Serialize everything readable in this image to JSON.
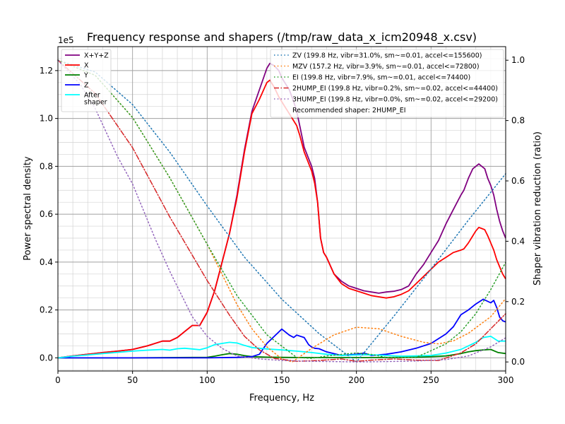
{
  "chart_data": {
    "type": "line",
    "title": "Frequency response and shapers (/tmp/raw_data_x_icm20948_x.csv)",
    "xlabel": "Frequency, Hz",
    "ylabel": "Power spectral density",
    "y2label": "Shaper vibration reduction (ratio)",
    "y_offset_label": "1e5",
    "xlim": [
      0,
      300
    ],
    "ylim": [
      -5500,
      130000
    ],
    "y2lim": [
      -0.03,
      1.045
    ],
    "xticks": [
      0,
      50,
      100,
      150,
      200,
      250,
      300
    ],
    "xtick_labels": [
      "0",
      "50",
      "100",
      "150",
      "200",
      "250",
      "300"
    ],
    "yticks": [
      0,
      20000,
      40000,
      60000,
      80000,
      100000,
      120000
    ],
    "ytick_labels": [
      "0.0",
      "0.2",
      "0.4",
      "0.6",
      "0.8",
      "1.0",
      "1.2"
    ],
    "y2ticks": [
      0,
      0.2,
      0.4,
      0.6,
      0.8,
      1.0
    ],
    "y2tick_labels": [
      "0.0",
      "0.2",
      "0.4",
      "0.6",
      "0.8",
      "1.0"
    ],
    "grid": true,
    "legend_left": {
      "placement": "upper-left",
      "entries": [
        {
          "label": "X+Y+Z",
          "color": "#800080",
          "dash": "solid"
        },
        {
          "label": "X",
          "color": "#ff0000",
          "dash": "solid"
        },
        {
          "label": "Y",
          "color": "#008000",
          "dash": "solid"
        },
        {
          "label": "Z",
          "color": "#0000ff",
          "dash": "solid"
        },
        {
          "label": "After\nshaper",
          "color": "#00ffff",
          "dash": "solid"
        }
      ]
    },
    "legend_right": {
      "placement": "upper-right",
      "entries": [
        {
          "label": "ZV (199.8 Hz, vibr=31.0%, sm~=0.01, accel<=155600)",
          "color": "#1f77b4",
          "dash": "dotted"
        },
        {
          "label": "MZV (157.2 Hz, vibr=3.9%, sm~=0.01, accel<=72800)",
          "color": "#ff7f0e",
          "dash": "dotted"
        },
        {
          "label": "EI (199.8 Hz, vibr=7.9%, sm~=0.01, accel<=74400)",
          "color": "#2ca02c",
          "dash": "dotted"
        },
        {
          "label": "2HUMP_EI (199.8 Hz, vibr=0.2%, sm~=0.02, accel<=44400)",
          "color": "#d62728",
          "dash": "dashdot"
        },
        {
          "label": "3HUMP_EI (199.8 Hz, vibr=0.0%, sm~=0.02, accel<=29200)",
          "color": "#9467bd",
          "dash": "dotted"
        },
        {
          "label": "Recommended shaper: 2HUMP_EI",
          "color": null,
          "dash": "none"
        }
      ]
    },
    "psd_series": [
      {
        "name": "X+Y+Z",
        "color": "#800080",
        "width": 1.8,
        "x": [
          0,
          10,
          20,
          30,
          40,
          50,
          60,
          70,
          75,
          80,
          85,
          90,
          95,
          100,
          105,
          110,
          115,
          120,
          125,
          130,
          135,
          140,
          142,
          145,
          148,
          150,
          152,
          155,
          158,
          160,
          162,
          165,
          170,
          172,
          174,
          176,
          178,
          180,
          185,
          190,
          195,
          200,
          205,
          210,
          215,
          220,
          225,
          230,
          235,
          240,
          245,
          250,
          255,
          260,
          265,
          270,
          272,
          275,
          278,
          280,
          282,
          284,
          286,
          288,
          290,
          292,
          294,
          296,
          298,
          300
        ],
        "y": [
          0,
          800,
          1500,
          2200,
          2800,
          3500,
          5000,
          7000,
          7000,
          8500,
          11000,
          13500,
          13500,
          19000,
          28000,
          40000,
          52000,
          68000,
          87000,
          103000,
          112000,
          121000,
          123000,
          122000,
          120000,
          117000,
          115000,
          112000,
          107000,
          103000,
          97000,
          88000,
          80000,
          75000,
          65000,
          50000,
          44000,
          42000,
          35000,
          32000,
          30000,
          29000,
          28000,
          27500,
          27000,
          27500,
          27800,
          28500,
          30000,
          35000,
          39000,
          44000,
          49000,
          56000,
          62000,
          68000,
          70000,
          75000,
          79000,
          80000,
          81000,
          80000,
          79000,
          75000,
          72000,
          68000,
          62000,
          57000,
          53000,
          50000
        ]
      },
      {
        "name": "X",
        "color": "#ff0000",
        "width": 1.8,
        "x": [
          0,
          10,
          20,
          30,
          40,
          50,
          60,
          70,
          75,
          80,
          85,
          90,
          95,
          100,
          105,
          110,
          115,
          120,
          125,
          130,
          135,
          140,
          142,
          145,
          148,
          150,
          152,
          155,
          158,
          160,
          162,
          165,
          170,
          172,
          174,
          176,
          178,
          180,
          185,
          190,
          195,
          200,
          205,
          210,
          215,
          220,
          225,
          230,
          235,
          240,
          245,
          250,
          255,
          260,
          265,
          270,
          272,
          275,
          278,
          280,
          282,
          284,
          286,
          288,
          290,
          292,
          294,
          296,
          298,
          300
        ],
        "y": [
          0,
          800,
          1500,
          2200,
          2800,
          3500,
          5000,
          7000,
          7000,
          8500,
          11000,
          13500,
          13500,
          19000,
          28000,
          40000,
          52000,
          67000,
          86000,
          102000,
          108000,
          115000,
          116000,
          113000,
          109000,
          107000,
          105000,
          102000,
          99000,
          97000,
          93000,
          86000,
          78000,
          73000,
          65000,
          50000,
          44000,
          42000,
          35000,
          31000,
          29000,
          28000,
          27000,
          26000,
          25500,
          25000,
          25500,
          26500,
          28000,
          31000,
          34000,
          37000,
          40000,
          42000,
          44000,
          45000,
          45500,
          48000,
          51000,
          53000,
          54500,
          54000,
          53500,
          51000,
          48000,
          45000,
          41000,
          38000,
          35000,
          33000
        ]
      },
      {
        "name": "Y",
        "color": "#008000",
        "width": 1.8,
        "x": [
          0,
          50,
          100,
          105,
          110,
          115,
          120,
          125,
          130,
          140,
          150,
          160,
          170,
          180,
          190,
          200,
          210,
          220,
          230,
          240,
          250,
          260,
          265,
          270,
          275,
          280,
          285,
          290,
          295,
          300
        ],
        "y": [
          0,
          0,
          200,
          700,
          1300,
          1800,
          1500,
          900,
          500,
          300,
          200,
          150,
          100,
          100,
          100,
          100,
          100,
          150,
          200,
          300,
          500,
          800,
          1300,
          1800,
          2500,
          3000,
          3300,
          3500,
          2200,
          1800
        ]
      },
      {
        "name": "Z",
        "color": "#0000ff",
        "width": 1.8,
        "x": [
          0,
          50,
          100,
          120,
          130,
          135,
          140,
          145,
          150,
          155,
          158,
          160,
          165,
          168,
          170,
          172,
          175,
          180,
          190,
          200,
          205,
          210,
          220,
          230,
          240,
          250,
          260,
          265,
          270,
          275,
          280,
          285,
          290,
          292,
          294,
          296,
          298,
          300
        ],
        "y": [
          0,
          0,
          0,
          200,
          500,
          1500,
          6000,
          9000,
          12000,
          9500,
          8500,
          9500,
          8500,
          5500,
          4500,
          4000,
          3800,
          2500,
          1000,
          1500,
          2000,
          1000,
          1500,
          2500,
          4000,
          6000,
          10000,
          13000,
          18000,
          20000,
          22500,
          24500,
          23000,
          24000,
          21000,
          17000,
          15500,
          15000
        ]
      },
      {
        "name": "After shaper",
        "color": "#00ffff",
        "width": 1.8,
        "x": [
          0,
          10,
          20,
          30,
          40,
          50,
          60,
          70,
          75,
          80,
          85,
          90,
          95,
          100,
          105,
          110,
          115,
          120,
          125,
          130,
          140,
          150,
          160,
          170,
          180,
          190,
          200,
          210,
          220,
          230,
          240,
          250,
          260,
          270,
          280,
          285,
          290,
          295,
          300
        ],
        "y": [
          0,
          700,
          1200,
          1800,
          2300,
          2800,
          3200,
          3500,
          3200,
          3800,
          4000,
          3700,
          3400,
          4200,
          5500,
          6000,
          6500,
          6200,
          5200,
          4300,
          3700,
          3300,
          2800,
          2200,
          1500,
          1000,
          1200,
          1300,
          1000,
          700,
          800,
          1000,
          2000,
          3500,
          6500,
          8500,
          9000,
          7000,
          7000
        ]
      }
    ],
    "shaper_series": [
      {
        "name": "ZV",
        "color": "#1f77b4",
        "dash": "1.5,3.3",
        "x": [
          0,
          25,
          50,
          75,
          100,
          125,
          150,
          175,
          200,
          225,
          250,
          275,
          300
        ],
        "y": [
          1.0,
          0.961,
          0.853,
          0.695,
          0.517,
          0.347,
          0.208,
          0.094,
          0.0,
          0.151,
          0.308,
          0.47,
          0.624
        ]
      },
      {
        "name": "MZV",
        "color": "#ff7f0e",
        "dash": "1.5,3.3",
        "x": [
          0,
          25,
          50,
          75,
          100,
          110,
          120,
          130,
          140,
          150,
          157,
          170,
          185,
          200,
          215,
          230,
          245,
          255,
          265,
          275,
          290,
          300
        ],
        "y": [
          1.0,
          0.95,
          0.81,
          0.61,
          0.39,
          0.29,
          0.19,
          0.11,
          0.05,
          0.01,
          0.0,
          0.045,
          0.09,
          0.115,
          0.11,
          0.085,
          0.065,
          0.06,
          0.07,
          0.095,
          0.15,
          0.21
        ]
      },
      {
        "name": "EI",
        "color": "#2ca02c",
        "dash": "1.5,3.3",
        "x": [
          0,
          25,
          50,
          75,
          100,
          120,
          140,
          160,
          170,
          180,
          190,
          200,
          210,
          220,
          240,
          260,
          270,
          280,
          290,
          300
        ],
        "y": [
          1.0,
          0.95,
          0.81,
          0.61,
          0.39,
          0.22,
          0.09,
          0.015,
          0.012,
          0.02,
          0.025,
          0.03,
          0.025,
          0.015,
          0.015,
          0.06,
          0.1,
          0.16,
          0.24,
          0.33
        ]
      },
      {
        "name": "2HUMP_EI",
        "color": "#d62728",
        "dash": "7,2.5,1.5,2.5",
        "x": [
          0,
          25,
          50,
          75,
          100,
          115,
          125,
          135,
          145,
          160,
          175,
          190,
          200,
          210,
          225,
          240,
          255,
          270,
          280,
          290,
          300
        ],
        "y": [
          1.0,
          0.89,
          0.71,
          0.48,
          0.27,
          0.155,
          0.085,
          0.04,
          0.012,
          0.002,
          0.005,
          0.01,
          0.002,
          0.006,
          0.01,
          0.006,
          0.005,
          0.03,
          0.06,
          0.11,
          0.16
        ]
      },
      {
        "name": "3HUMP_EI",
        "color": "#9467bd",
        "dash": "1.5,3.3",
        "x": [
          0,
          15,
          25,
          40,
          50,
          65,
          75,
          90,
          100,
          110,
          120,
          135,
          150,
          170,
          190,
          200,
          215,
          240,
          260,
          275,
          290,
          300
        ],
        "y": [
          1.0,
          0.92,
          0.84,
          0.68,
          0.59,
          0.41,
          0.3,
          0.15,
          0.085,
          0.045,
          0.02,
          0.01,
          0.005,
          0.002,
          0.001,
          0.0,
          0.001,
          0.003,
          0.008,
          0.02,
          0.05,
          0.08
        ]
      }
    ]
  }
}
